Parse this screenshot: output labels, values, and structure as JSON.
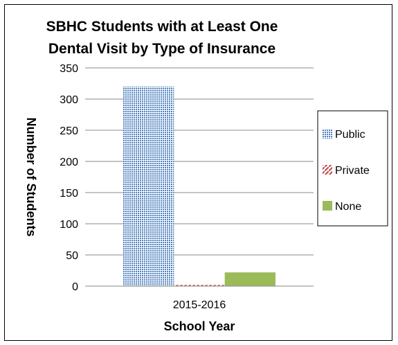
{
  "chart_data": {
    "type": "bar",
    "title_lines": [
      "SBHC Students with at Least One",
      "Dental Visit by Type of Insurance"
    ],
    "xlabel": "School Year",
    "ylabel": "Number of Students",
    "categories": [
      "2015-2016"
    ],
    "ylim": [
      0,
      350
    ],
    "yticks": [
      0,
      50,
      100,
      150,
      200,
      250,
      300,
      350
    ],
    "grid": true,
    "legend_position": "right",
    "series": [
      {
        "name": "Public",
        "values": [
          320
        ],
        "color": "#4f81bd",
        "pattern": "dotted"
      },
      {
        "name": "Private",
        "values": [
          2
        ],
        "color": "#c0504d",
        "pattern": "diagonal"
      },
      {
        "name": "None",
        "values": [
          22
        ],
        "color": "#9bbb59",
        "pattern": "solid"
      }
    ]
  }
}
